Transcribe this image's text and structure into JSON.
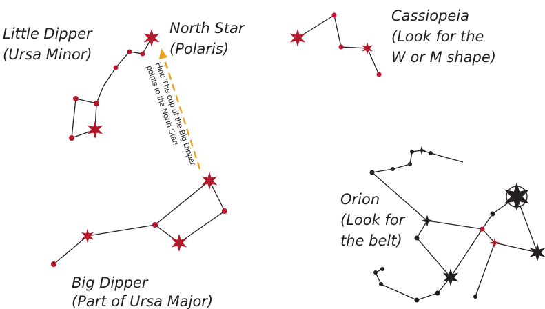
{
  "labels": {
    "little_dipper": [
      "Little Dipper",
      "(Ursa Minor)"
    ],
    "north_star": [
      "North Star",
      "(Polaris)"
    ],
    "cassiopeia": [
      "Cassiopeia",
      "(Look for the",
      "W or M shape)"
    ],
    "hint": [
      "Hint: The cup of the Big Dipper",
      "points to the North Star!"
    ],
    "orion": [
      "Orion",
      "(Look for",
      "the belt)"
    ],
    "big_dipper": [
      "Big Dipper",
      "(Part of Ursa Major)"
    ]
  }
}
